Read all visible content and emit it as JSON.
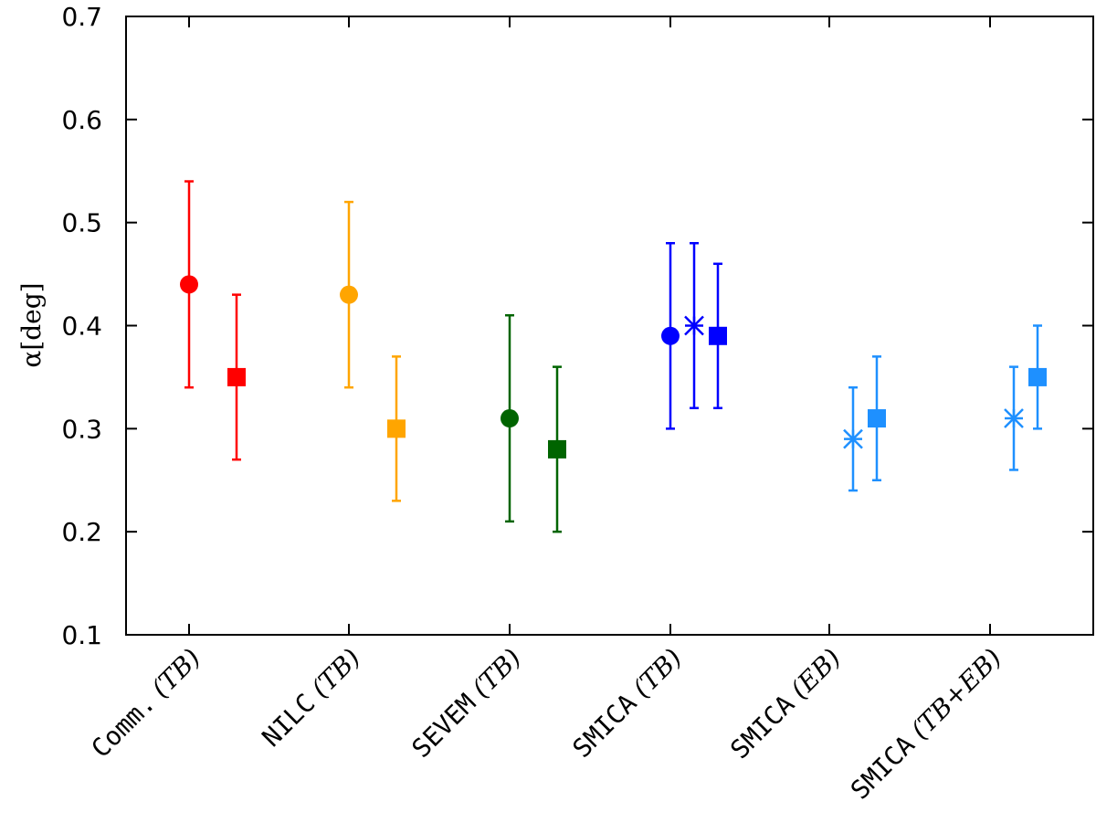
{
  "chart_data": {
    "type": "scatter",
    "title": "",
    "xlabel": "",
    "ylabel": "α[deg]",
    "ylim": [
      0.1,
      0.7
    ],
    "yticks": [
      "0.1",
      "0.2",
      "0.3",
      "0.4",
      "0.5",
      "0.6",
      "0.7"
    ],
    "grid": false,
    "legend": "none",
    "categories": [
      {
        "name": "Comm.",
        "estimator": "TB"
      },
      {
        "name": "NILC",
        "estimator": "TB"
      },
      {
        "name": "SEVEM",
        "estimator": "TB"
      },
      {
        "name": "SMICA",
        "estimator": "TB"
      },
      {
        "name": "SMICA",
        "estimator": "EB"
      },
      {
        "name": "SMICA",
        "estimator": "TB+EB"
      }
    ],
    "points": [
      {
        "category": 0,
        "offset": 0,
        "marker": "circle",
        "color": "#ff0000",
        "value": 0.44,
        "lower": 0.34,
        "upper": 0.54
      },
      {
        "category": 0,
        "offset": 1,
        "marker": "square",
        "color": "#ff0000",
        "value": 0.35,
        "lower": 0.27,
        "upper": 0.43
      },
      {
        "category": 1,
        "offset": 0,
        "marker": "circle",
        "color": "#ffa500",
        "value": 0.43,
        "lower": 0.34,
        "upper": 0.52
      },
      {
        "category": 1,
        "offset": 1,
        "marker": "square",
        "color": "#ffa500",
        "value": 0.3,
        "lower": 0.23,
        "upper": 0.37
      },
      {
        "category": 2,
        "offset": 0,
        "marker": "circle",
        "color": "#006400",
        "value": 0.31,
        "lower": 0.21,
        "upper": 0.41
      },
      {
        "category": 2,
        "offset": 1,
        "marker": "square",
        "color": "#006400",
        "value": 0.28,
        "lower": 0.2,
        "upper": 0.36
      },
      {
        "category": 3,
        "offset": 0,
        "marker": "circle",
        "color": "#0000ff",
        "value": 0.39,
        "lower": 0.3,
        "upper": 0.48
      },
      {
        "category": 3,
        "offset": 0.5,
        "marker": "star",
        "color": "#0000ff",
        "value": 0.4,
        "lower": 0.32,
        "upper": 0.48
      },
      {
        "category": 3,
        "offset": 1,
        "marker": "square",
        "color": "#0000ff",
        "value": 0.39,
        "lower": 0.32,
        "upper": 0.46
      },
      {
        "category": 4,
        "offset": 0.5,
        "marker": "star",
        "color": "#1e90ff",
        "value": 0.29,
        "lower": 0.24,
        "upper": 0.34
      },
      {
        "category": 4,
        "offset": 1,
        "marker": "square",
        "color": "#1e90ff",
        "value": 0.31,
        "lower": 0.25,
        "upper": 0.37
      },
      {
        "category": 5,
        "offset": 0.5,
        "marker": "star",
        "color": "#1e90ff",
        "value": 0.31,
        "lower": 0.26,
        "upper": 0.36
      },
      {
        "category": 5,
        "offset": 1,
        "marker": "square",
        "color": "#1e90ff",
        "value": 0.35,
        "lower": 0.3,
        "upper": 0.4
      }
    ]
  }
}
